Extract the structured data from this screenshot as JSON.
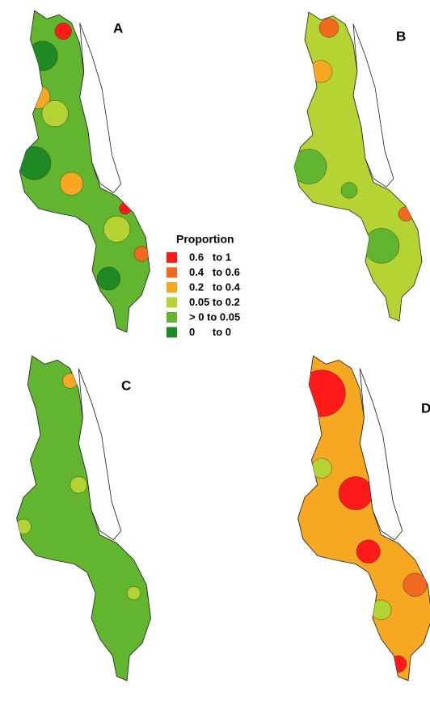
{
  "panels": [
    {
      "label": "A"
    },
    {
      "label": "B"
    },
    {
      "label": "C"
    },
    {
      "label": "D"
    }
  ],
  "legend": {
    "title": "Proportion",
    "items": [
      {
        "label": "0.6   to 1",
        "color": "#ff1a1a"
      },
      {
        "label": "0.4   to 0.6",
        "color": "#f26a1f"
      },
      {
        "label": "0.2   to 0.4",
        "color": "#f7a823"
      },
      {
        "label": "0.05 to 0.2",
        "color": "#b6d334"
      },
      {
        "label": "> 0 to 0.05",
        "color": "#62b52f"
      },
      {
        "label": "0      to 0",
        "color": "#1f8a24"
      }
    ]
  }
}
